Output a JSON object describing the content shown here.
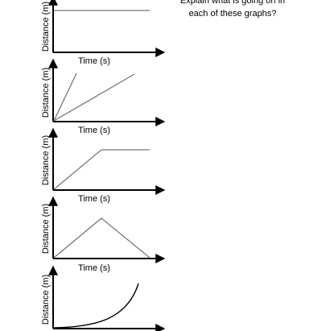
{
  "prompt": {
    "line1": "Explain what is going on in",
    "line2": "each of these graphs?"
  },
  "graphs": [
    {
      "ylabel": "Distance (m)",
      "xlabel": "Time (s)",
      "shape": "horizontal-line"
    },
    {
      "ylabel": "Distance (m)",
      "xlabel": "Time (s)",
      "shape": "two-lines-steep-and-shallow"
    },
    {
      "ylabel": "Distance (m)",
      "xlabel": "Time (s)",
      "shape": "rise-then-flat"
    },
    {
      "ylabel": "Distance (m)",
      "xlabel": "Time (s)",
      "shape": "rise-then-fall"
    },
    {
      "ylabel": "Distance (m)",
      "xlabel": "",
      "shape": "curve-increasing"
    }
  ],
  "colors": {
    "axis": "#000000",
    "line": "#777777",
    "curve": "#000000"
  }
}
